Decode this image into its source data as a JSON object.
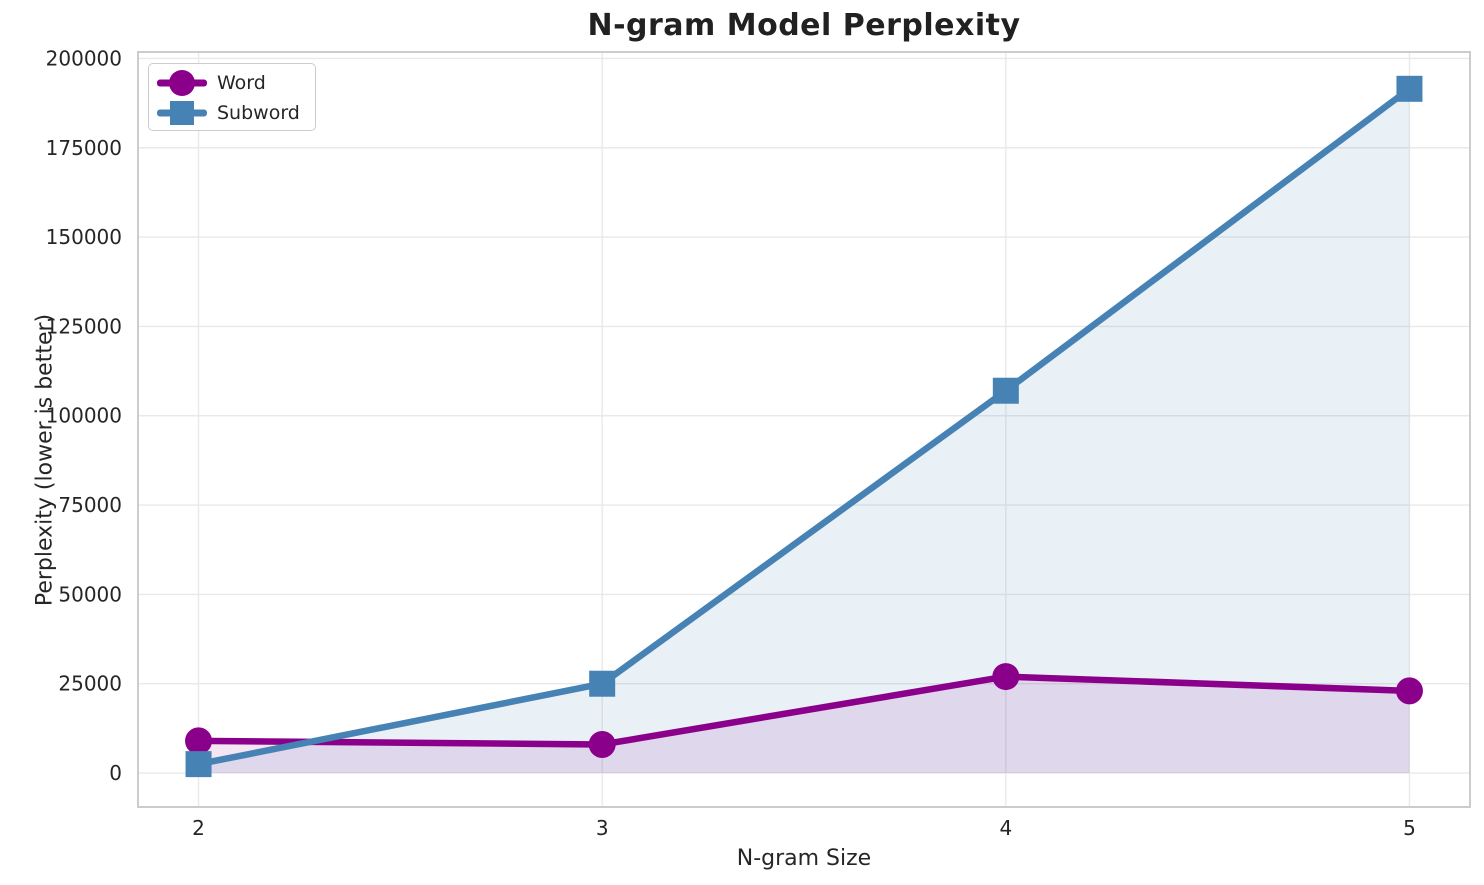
{
  "chart_data": {
    "type": "line",
    "title": "N-gram Model Perplexity",
    "xlabel": "N-gram Size",
    "ylabel": "Perplexity (lower is better)",
    "x": [
      2,
      3,
      4,
      5
    ],
    "series": [
      {
        "name": "Word",
        "values": [
          9000,
          8000,
          27000,
          23000
        ],
        "color": "#8B008B",
        "marker": "circle"
      },
      {
        "name": "Subword",
        "values": [
          2500,
          25000,
          107000,
          191500
        ],
        "color": "#4682B4",
        "marker": "square"
      }
    ],
    "x_tick_labels": [
      "2",
      "3",
      "4",
      "5"
    ],
    "y_tick_labels": [
      "0",
      "25000",
      "50000",
      "75000",
      "100000",
      "125000",
      "150000",
      "175000",
      "200000"
    ],
    "y_tick_values": [
      0,
      25000,
      50000,
      75000,
      100000,
      125000,
      150000,
      175000,
      200000
    ],
    "xlim": [
      1.85,
      5.15
    ],
    "ylim": [
      -9500,
      201800
    ],
    "grid": true,
    "area_fill": true,
    "fill_to_value": 0,
    "legend_position": "upper left",
    "colors": {
      "background": "#ffffff",
      "grid": "#e9e9e9",
      "spine": "#cccccc",
      "text": "#262626",
      "title": "#212121"
    }
  }
}
